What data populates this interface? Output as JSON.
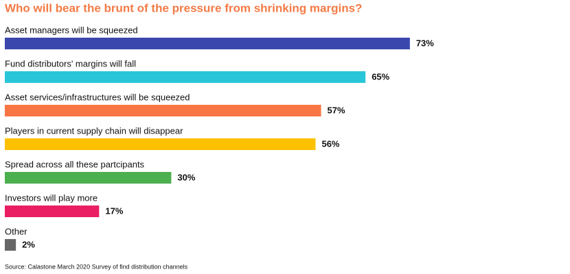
{
  "chart_data": {
    "type": "bar",
    "orientation": "horizontal",
    "title": "Who will bear the brunt of the pressure from shrinking margins?",
    "categories": [
      "Asset managers will be squeezed",
      "Fund distributors' margins will fall",
      "Asset services/infrastructures will be squeezed",
      "Players in current supply chain will disappear",
      "Spread across all these partcipants",
      "Investors will play more",
      "Other"
    ],
    "values": [
      73,
      65,
      57,
      56,
      30,
      17,
      2
    ],
    "value_labels": [
      "73%",
      "65%",
      "57%",
      "56%",
      "30%",
      "17%",
      "2%"
    ],
    "colors": [
      "#3a47ad",
      "#29c6d9",
      "#f97543",
      "#fdc100",
      "#4caf50",
      "#e91e63",
      "#666666"
    ],
    "source": "Source: Calastone March 2020 Survey of find distribution channels"
  }
}
